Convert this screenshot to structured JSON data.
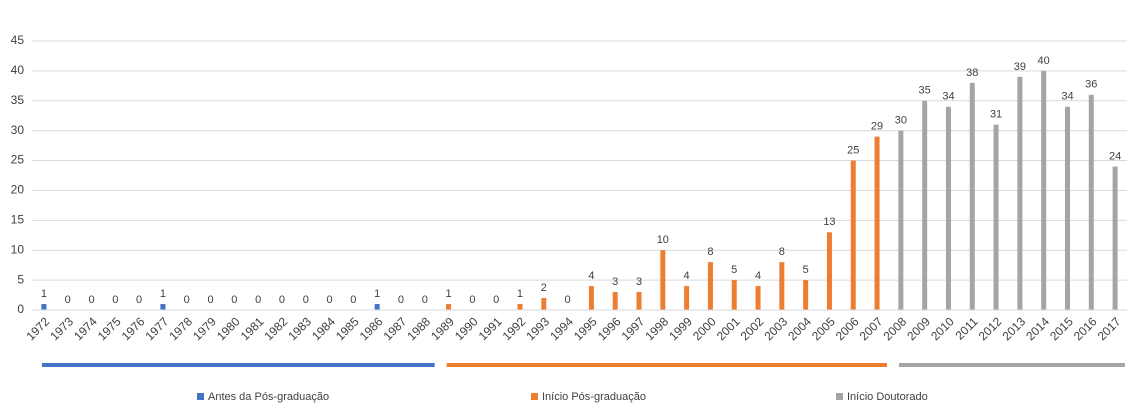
{
  "chart_data": {
    "type": "bar",
    "categories": [
      "1972",
      "1973",
      "1974",
      "1975",
      "1976",
      "1977",
      "1978",
      "1979",
      "1980",
      "1981",
      "1982",
      "1983",
      "1984",
      "1985",
      "1986",
      "1987",
      "1988",
      "1989",
      "1990",
      "1991",
      "1992",
      "1993",
      "1994",
      "1995",
      "1996",
      "1997",
      "1998",
      "1999",
      "2000",
      "2001",
      "2002",
      "2003",
      "2004",
      "2005",
      "2006",
      "2007",
      "2008",
      "2009",
      "2010",
      "2011",
      "2012",
      "2013",
      "2014",
      "2015",
      "2016",
      "2017"
    ],
    "series": [
      {
        "name": "Antes da Pós-graduação",
        "color": "#4472c4",
        "values": [
          1,
          0,
          0,
          0,
          0,
          1,
          0,
          0,
          0,
          0,
          0,
          0,
          0,
          0,
          1,
          0,
          0,
          null,
          null,
          null,
          null,
          null,
          null,
          null,
          null,
          null,
          null,
          null,
          null,
          null,
          null,
          null,
          null,
          null,
          null,
          null,
          null,
          null,
          null,
          null,
          null,
          null,
          null,
          null,
          null,
          null
        ]
      },
      {
        "name": "Início Pós-graduação",
        "color": "#ed7d31",
        "values": [
          null,
          null,
          null,
          null,
          null,
          null,
          null,
          null,
          null,
          null,
          null,
          null,
          null,
          null,
          null,
          null,
          null,
          1,
          0,
          0,
          1,
          2,
          0,
          4,
          3,
          3,
          10,
          4,
          8,
          5,
          4,
          8,
          5,
          13,
          25,
          29,
          null,
          null,
          null,
          null,
          null,
          null,
          null,
          null,
          null,
          null
        ]
      },
      {
        "name": "Início Doutorado",
        "color": "#a5a5a5",
        "values": [
          null,
          null,
          null,
          null,
          null,
          null,
          null,
          null,
          null,
          null,
          null,
          null,
          null,
          null,
          null,
          null,
          null,
          null,
          null,
          null,
          null,
          null,
          null,
          null,
          null,
          null,
          null,
          null,
          null,
          null,
          null,
          null,
          null,
          null,
          null,
          null,
          30,
          35,
          34,
          38,
          31,
          39,
          40,
          34,
          36,
          24
        ]
      }
    ],
    "ylim": [
      0,
      45
    ],
    "yticks": [
      0,
      5,
      10,
      15,
      20,
      25,
      30,
      35,
      40,
      45
    ],
    "grid": true,
    "legend": "bottom"
  }
}
